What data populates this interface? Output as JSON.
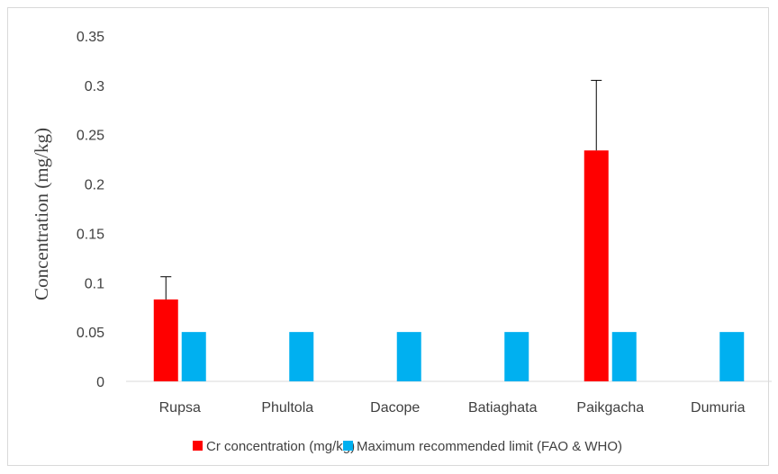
{
  "chart_data": {
    "type": "bar",
    "title": "",
    "xlabel": "",
    "ylabel": "Concentration (mg/kg)",
    "ylim": [
      0,
      0.35
    ],
    "yticks": [
      "0",
      "0.05",
      "0.1",
      "0.15",
      "0.2",
      "0.25",
      "0.3",
      "0.35"
    ],
    "grid": false,
    "legend_position": "bottom",
    "categories": [
      "Rupsa",
      "Phultola",
      "Dacope",
      "Batiaghata",
      "Paikgacha",
      "Dumuria"
    ],
    "series": [
      {
        "name": "Cr concentration (mg/kg)",
        "color": "#ff0000",
        "values": [
          0.083,
          0,
          0,
          0,
          0.234,
          0
        ],
        "error": [
          0.023,
          0,
          0,
          0,
          0.071,
          0
        ]
      },
      {
        "name": "Maximum recommended limit (FAO & WHO)",
        "color": "#00b0f0",
        "values": [
          0.05,
          0.05,
          0.05,
          0.05,
          0.05,
          0.05
        ]
      }
    ]
  }
}
